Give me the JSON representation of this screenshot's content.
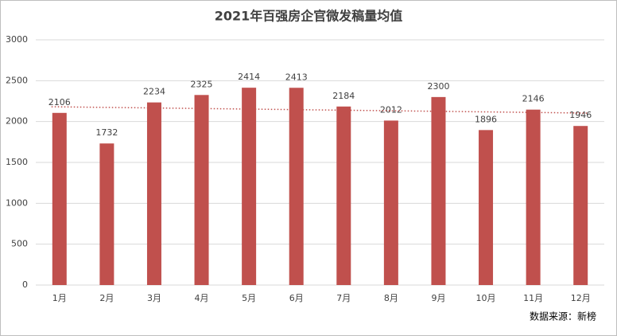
{
  "chart_data": {
    "type": "bar",
    "title": "2021年百强房企官微发稿量均值",
    "categories": [
      "1月",
      "2月",
      "3月",
      "4月",
      "5月",
      "6月",
      "7月",
      "8月",
      "9月",
      "10月",
      "11月",
      "12月"
    ],
    "values": [
      2106,
      1732,
      2234,
      2325,
      2414,
      2413,
      2184,
      2012,
      2300,
      1896,
      2146,
      1946
    ],
    "color": "#c0504d",
    "ylim": [
      0,
      3000
    ],
    "yticks": [
      0,
      500,
      1000,
      1500,
      2000,
      2500,
      3000
    ],
    "grid": true,
    "trendline": "linear",
    "trendline_color": "#c0504d",
    "source": "数据来源：新榜"
  }
}
